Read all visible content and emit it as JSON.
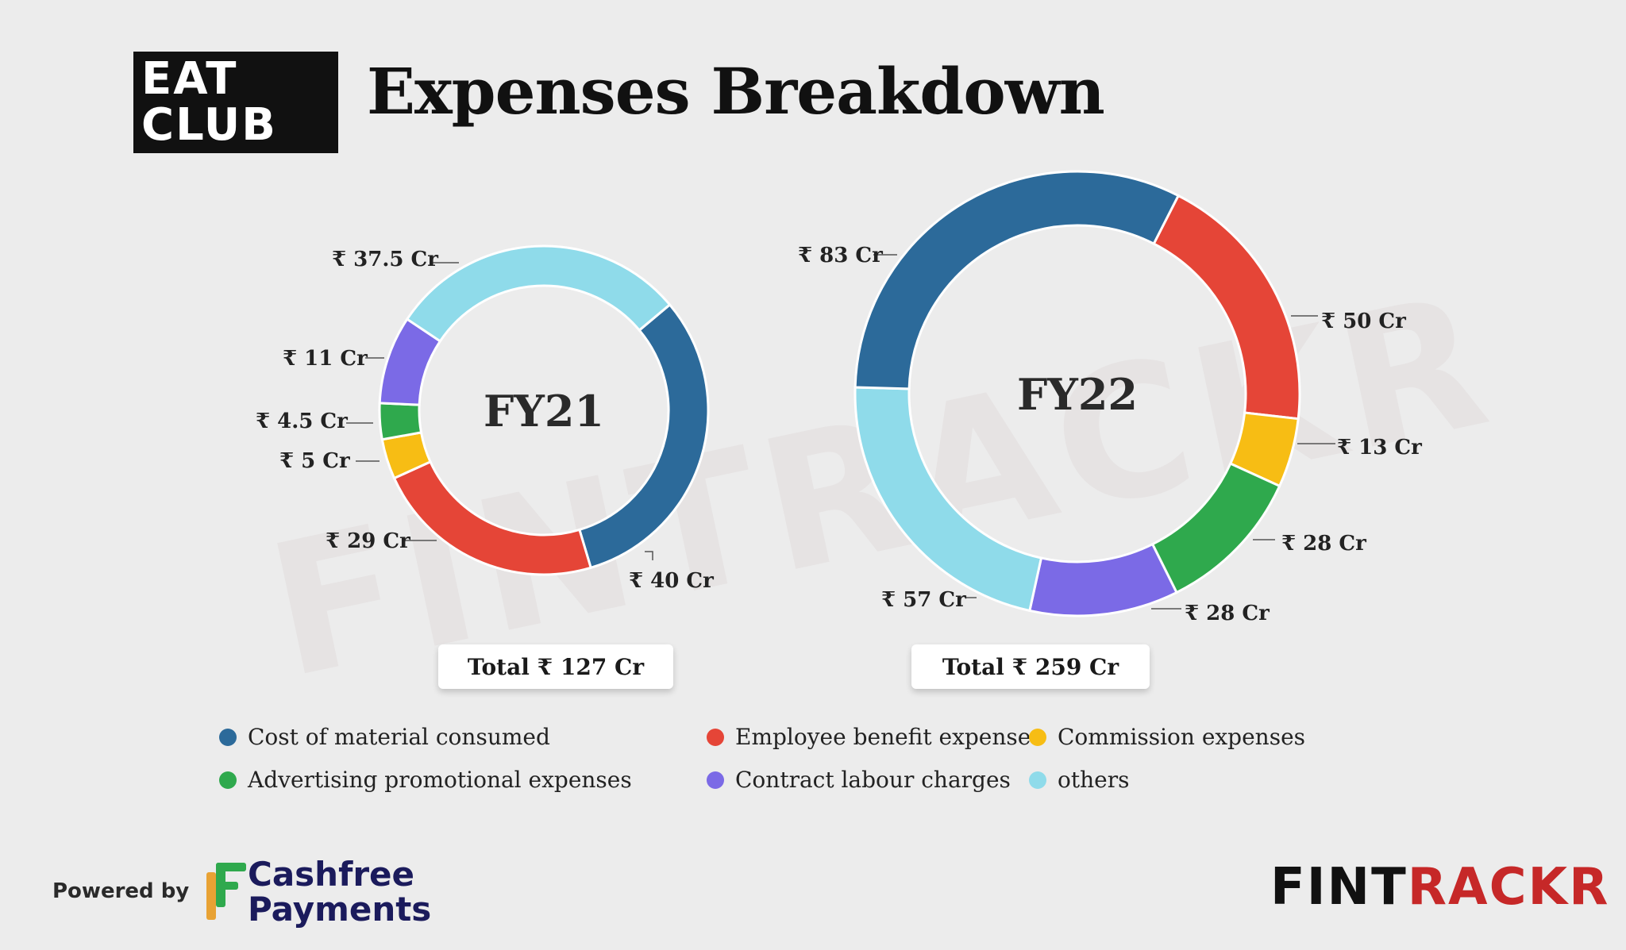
{
  "logo": {
    "line1": "EAT",
    "line2": "CLUB"
  },
  "title": "Expenses Breakdown",
  "watermark": "FINTRACKR",
  "chart_data": [
    {
      "type": "donut",
      "center_label": "FY21",
      "total_label": "Total ₹  127 Cr",
      "slices": [
        {
          "name": "Cost of material consumed",
          "value": 40,
          "label": "₹ 40 Cr",
          "color": "#2c6a9a"
        },
        {
          "name": "Employee benefit expense",
          "value": 29,
          "label": "₹ 29 Cr",
          "color": "#e54537"
        },
        {
          "name": "Commission expenses",
          "value": 5,
          "label": "₹ 5 Cr",
          "color": "#f7bd14"
        },
        {
          "name": "Advertising promotional expenses",
          "value": 4.5,
          "label": "₹ 4.5 Cr",
          "color": "#2fa94d"
        },
        {
          "name": "Contract labour charges",
          "value": 11,
          "label": "₹ 11 Cr",
          "color": "#7b6ae6"
        },
        {
          "name": "others",
          "value": 37.5,
          "label": "₹ 37.5 Cr",
          "color": "#8fdbea"
        }
      ]
    },
    {
      "type": "donut",
      "center_label": "FY22",
      "total_label": "Total ₹ 259 Cr",
      "slices": [
        {
          "name": "Employee benefit expense",
          "value": 50,
          "label": "₹ 50 Cr",
          "color": "#e54537"
        },
        {
          "name": "Commission expenses",
          "value": 13,
          "label": "₹ 13 Cr",
          "color": "#f7bd14"
        },
        {
          "name": "Advertising promotional expenses",
          "value": 28,
          "label": "₹ 28 Cr",
          "color": "#2fa94d"
        },
        {
          "name": "Contract labour charges",
          "value": 28,
          "label": "₹ 28 Cr",
          "color": "#7b6ae6"
        },
        {
          "name": "others",
          "value": 57,
          "label": "₹ 57 Cr",
          "color": "#8fdbea"
        },
        {
          "name": "Cost of material consumed",
          "value": 83,
          "label": "₹ 83 Cr",
          "color": "#2c6a9a"
        }
      ]
    }
  ],
  "legend": [
    {
      "label": "Cost of material consumed",
      "color": "#2c6a9a"
    },
    {
      "label": "Employee benefit expense",
      "color": "#e54537"
    },
    {
      "label": "Commission expenses",
      "color": "#f7bd14"
    },
    {
      "label": "Advertising promotional expenses",
      "color": "#2fa94d"
    },
    {
      "label": "Contract labour charges",
      "color": "#7b6ae6"
    },
    {
      "label": "others",
      "color": "#8fdbea"
    }
  ],
  "footer": {
    "powered_by": "Powered by",
    "brand_line1": "Cashfree",
    "brand_line2": "Payments",
    "fintrackr_part1": "FINT",
    "fintrackr_part2": "RACKR"
  }
}
